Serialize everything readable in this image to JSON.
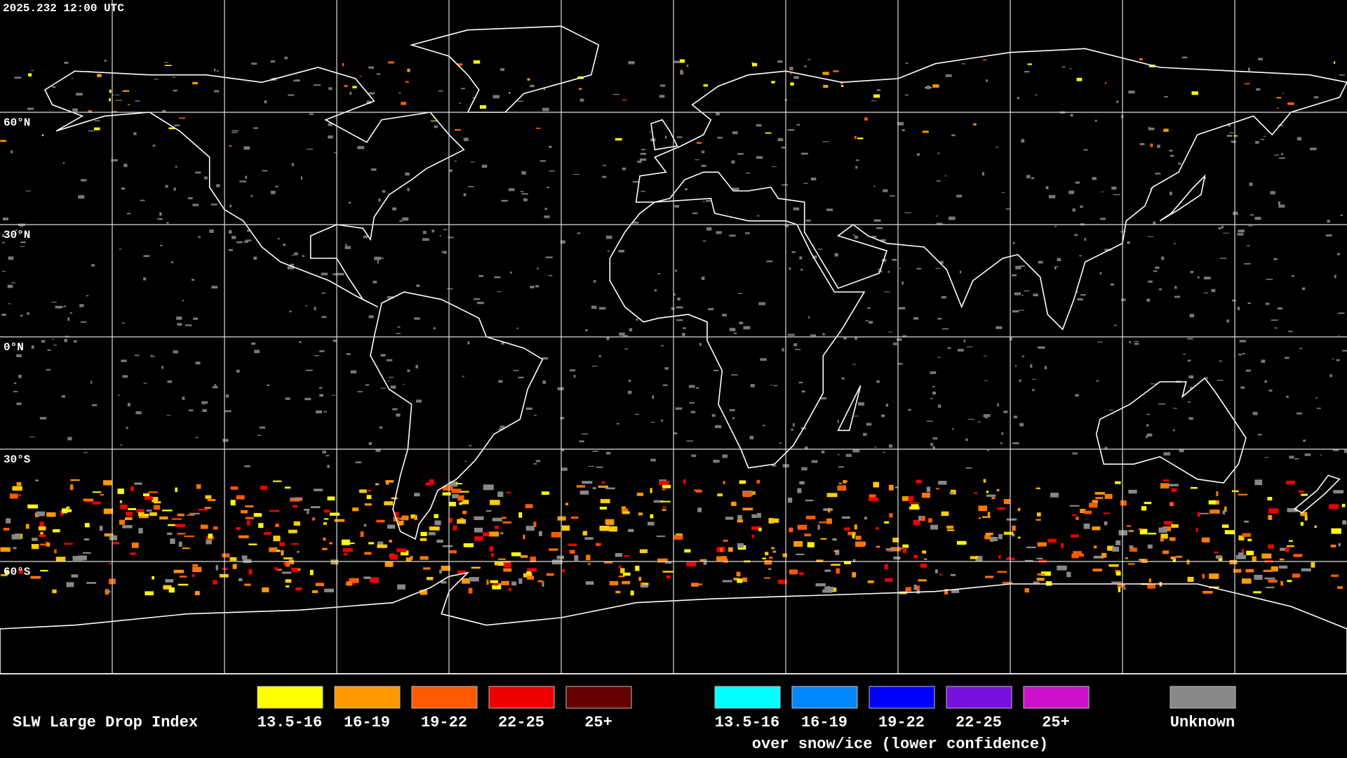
{
  "header": {
    "timestamp": "2025.232 12:00 UTC"
  },
  "latitude_labels": [
    "60°N",
    "30°N",
    "0°N",
    "30°S",
    "60°S"
  ],
  "legend": {
    "title": "SLW Large Drop Index",
    "items": [
      {
        "label": "13.5-16",
        "color": "#ffff00"
      },
      {
        "label": "16-19",
        "color": "#ff9900"
      },
      {
        "label": "19-22",
        "color": "#ff5a00"
      },
      {
        "label": "22-25",
        "color": "#ee0000"
      },
      {
        "label": "25+",
        "color": "#660000"
      }
    ],
    "snow_items": [
      {
        "label": "13.5-16",
        "color": "#00ffff"
      },
      {
        "label": "16-19",
        "color": "#0088ff"
      },
      {
        "label": "19-22",
        "color": "#0000ff"
      },
      {
        "label": "22-25",
        "color": "#7711dd"
      },
      {
        "label": "25+",
        "color": "#cc11cc"
      }
    ],
    "snow_caption": "over snow/ice (lower confidence)",
    "unknown": {
      "label": "Unknown",
      "color": "#888888"
    }
  }
}
